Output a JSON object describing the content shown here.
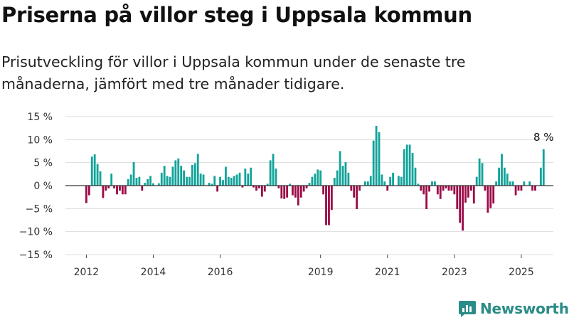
{
  "chart_data": {
    "type": "bar",
    "title": "Priserna på villor steg i Uppsala kommun",
    "subtitle": "Prisutveckling för villor i Uppsala kommun under de senaste tre månaderna, jämfört med tre månader tidigare.",
    "xlabel": "",
    "ylabel": "",
    "ylim": [
      -15,
      15
    ],
    "y_ticks": [
      15,
      10,
      5,
      0,
      -5,
      -10,
      -15
    ],
    "y_tick_labels": [
      "15 %",
      "10 %",
      "5 %",
      "0 %",
      "−5 %",
      "−10 %",
      "−15 %"
    ],
    "x_range": [
      "2011-06",
      "2026-01"
    ],
    "x_ticks": [
      {
        "date": "2012-01",
        "label": "2012"
      },
      {
        "date": "2014-01",
        "label": "2014"
      },
      {
        "date": "2016-01",
        "label": "2016"
      },
      {
        "date": "2019-01",
        "label": "2019"
      },
      {
        "date": "2021-01",
        "label": "2021"
      },
      {
        "date": "2023-01",
        "label": "2023"
      },
      {
        "date": "2025-01",
        "label": "2025"
      }
    ],
    "grid": true,
    "legend": "none",
    "series": [
      {
        "positive_color": "#12a39a",
        "negative_color": "#9c0b47",
        "points": [
          {
            "x": "2012-01",
            "y": -3.8
          },
          {
            "x": "2012-02",
            "y": -2.1
          },
          {
            "x": "2012-03",
            "y": 6.3
          },
          {
            "x": "2012-04",
            "y": 6.8
          },
          {
            "x": "2012-05",
            "y": 4.7
          },
          {
            "x": "2012-06",
            "y": 3.1
          },
          {
            "x": "2012-07",
            "y": -2.7
          },
          {
            "x": "2012-08",
            "y": -1.1
          },
          {
            "x": "2012-09",
            "y": -0.6
          },
          {
            "x": "2012-10",
            "y": 2.6
          },
          {
            "x": "2012-11",
            "y": -0.6
          },
          {
            "x": "2012-12",
            "y": -1.9
          },
          {
            "x": "2013-01",
            "y": -1.1
          },
          {
            "x": "2013-02",
            "y": -1.9
          },
          {
            "x": "2013-03",
            "y": -1.9
          },
          {
            "x": "2013-04",
            "y": 1.4
          },
          {
            "x": "2013-05",
            "y": 2.4
          },
          {
            "x": "2013-06",
            "y": 5.1
          },
          {
            "x": "2013-07",
            "y": 1.7
          },
          {
            "x": "2013-08",
            "y": 1.9
          },
          {
            "x": "2013-09",
            "y": -1.1
          },
          {
            "x": "2013-10",
            "y": 0.6
          },
          {
            "x": "2013-11",
            "y": 1.4
          },
          {
            "x": "2013-12",
            "y": 2.1
          },
          {
            "x": "2014-01",
            "y": 0.5
          },
          {
            "x": "2014-03",
            "y": 0.5
          },
          {
            "x": "2014-04",
            "y": 2.8
          },
          {
            "x": "2014-05",
            "y": 4.3
          },
          {
            "x": "2014-06",
            "y": 2.1
          },
          {
            "x": "2014-07",
            "y": 1.9
          },
          {
            "x": "2014-08",
            "y": 4.1
          },
          {
            "x": "2014-09",
            "y": 5.5
          },
          {
            "x": "2014-10",
            "y": 5.9
          },
          {
            "x": "2014-11",
            "y": 4.3
          },
          {
            "x": "2014-12",
            "y": 3.3
          },
          {
            "x": "2015-01",
            "y": 1.9
          },
          {
            "x": "2015-02",
            "y": 1.9
          },
          {
            "x": "2015-03",
            "y": 4.5
          },
          {
            "x": "2015-04",
            "y": 4.9
          },
          {
            "x": "2015-05",
            "y": 6.9
          },
          {
            "x": "2015-06",
            "y": 2.6
          },
          {
            "x": "2015-07",
            "y": 2.4
          },
          {
            "x": "2015-09",
            "y": 0.6
          },
          {
            "x": "2015-10",
            "y": 0.4
          },
          {
            "x": "2015-11",
            "y": 2.1
          },
          {
            "x": "2015-12",
            "y": -1.3
          },
          {
            "x": "2016-01",
            "y": 1.9
          },
          {
            "x": "2016-02",
            "y": 1.2
          },
          {
            "x": "2016-03",
            "y": 4.1
          },
          {
            "x": "2016-04",
            "y": 1.9
          },
          {
            "x": "2016-05",
            "y": 1.7
          },
          {
            "x": "2016-06",
            "y": 2.1
          },
          {
            "x": "2016-07",
            "y": 2.4
          },
          {
            "x": "2016-08",
            "y": 2.8
          },
          {
            "x": "2016-09",
            "y": -0.4
          },
          {
            "x": "2016-10",
            "y": 3.7
          },
          {
            "x": "2016-11",
            "y": 2.6
          },
          {
            "x": "2016-12",
            "y": 3.9
          },
          {
            "x": "2017-01",
            "y": -0.4
          },
          {
            "x": "2017-02",
            "y": -1.1
          },
          {
            "x": "2017-03",
            "y": -0.6
          },
          {
            "x": "2017-04",
            "y": -2.4
          },
          {
            "x": "2017-05",
            "y": -1.3
          },
          {
            "x": "2017-06",
            "y": 0.4
          },
          {
            "x": "2017-07",
            "y": 5.5
          },
          {
            "x": "2017-08",
            "y": 6.9
          },
          {
            "x": "2017-09",
            "y": 3.7
          },
          {
            "x": "2017-10",
            "y": -0.6
          },
          {
            "x": "2017-11",
            "y": -2.8
          },
          {
            "x": "2017-12",
            "y": -2.9
          },
          {
            "x": "2018-01",
            "y": -2.6
          },
          {
            "x": "2018-02",
            "y": 0.4
          },
          {
            "x": "2018-03",
            "y": -2.1
          },
          {
            "x": "2018-04",
            "y": -2.6
          },
          {
            "x": "2018-05",
            "y": -4.3
          },
          {
            "x": "2018-06",
            "y": -2.6
          },
          {
            "x": "2018-07",
            "y": -1.3
          },
          {
            "x": "2018-08",
            "y": -0.6
          },
          {
            "x": "2018-09",
            "y": 0.6
          },
          {
            "x": "2018-10",
            "y": 1.9
          },
          {
            "x": "2018-11",
            "y": 2.6
          },
          {
            "x": "2018-12",
            "y": 3.5
          },
          {
            "x": "2019-01",
            "y": 3.3
          },
          {
            "x": "2019-02",
            "y": -1.9
          },
          {
            "x": "2019-03",
            "y": -8.6
          },
          {
            "x": "2019-04",
            "y": -8.6
          },
          {
            "x": "2019-05",
            "y": -5.3
          },
          {
            "x": "2019-06",
            "y": 1.7
          },
          {
            "x": "2019-07",
            "y": 3.3
          },
          {
            "x": "2019-08",
            "y": 7.5
          },
          {
            "x": "2019-09",
            "y": 4.3
          },
          {
            "x": "2019-10",
            "y": 5.1
          },
          {
            "x": "2019-11",
            "y": 2.8
          },
          {
            "x": "2019-12",
            "y": -1.1
          },
          {
            "x": "2020-01",
            "y": -2.6
          },
          {
            "x": "2020-02",
            "y": -5.1
          },
          {
            "x": "2020-03",
            "y": -1.1
          },
          {
            "x": "2020-05",
            "y": 0.9
          },
          {
            "x": "2020-06",
            "y": 0.9
          },
          {
            "x": "2020-07",
            "y": 2.1
          },
          {
            "x": "2020-08",
            "y": 9.8
          },
          {
            "x": "2020-09",
            "y": 13.0
          },
          {
            "x": "2020-10",
            "y": 11.6
          },
          {
            "x": "2020-11",
            "y": 2.4
          },
          {
            "x": "2020-12",
            "y": 0.9
          },
          {
            "x": "2021-01",
            "y": -1.1
          },
          {
            "x": "2021-02",
            "y": 1.9
          },
          {
            "x": "2021-03",
            "y": 2.8
          },
          {
            "x": "2021-05",
            "y": 2.1
          },
          {
            "x": "2021-06",
            "y": 1.9
          },
          {
            "x": "2021-07",
            "y": 7.9
          },
          {
            "x": "2021-08",
            "y": 8.9
          },
          {
            "x": "2021-09",
            "y": 8.9
          },
          {
            "x": "2021-10",
            "y": 7.1
          },
          {
            "x": "2021-11",
            "y": 3.9
          },
          {
            "x": "2021-12",
            "y": 0.4
          },
          {
            "x": "2022-01",
            "y": -1.1
          },
          {
            "x": "2022-02",
            "y": -1.9
          },
          {
            "x": "2022-03",
            "y": -5.1
          },
          {
            "x": "2022-04",
            "y": -1.3
          },
          {
            "x": "2022-05",
            "y": 0.9
          },
          {
            "x": "2022-06",
            "y": 0.9
          },
          {
            "x": "2022-07",
            "y": -1.9
          },
          {
            "x": "2022-08",
            "y": -2.9
          },
          {
            "x": "2022-09",
            "y": -1.1
          },
          {
            "x": "2022-10",
            "y": -0.6
          },
          {
            "x": "2022-11",
            "y": -1.1
          },
          {
            "x": "2022-12",
            "y": -1.1
          },
          {
            "x": "2023-01",
            "y": -1.9
          },
          {
            "x": "2023-02",
            "y": -5.1
          },
          {
            "x": "2023-03",
            "y": -8.1
          },
          {
            "x": "2023-04",
            "y": -9.8
          },
          {
            "x": "2023-05",
            "y": -3.7
          },
          {
            "x": "2023-06",
            "y": -2.6
          },
          {
            "x": "2023-07",
            "y": -1.1
          },
          {
            "x": "2023-08",
            "y": -3.9
          },
          {
            "x": "2023-09",
            "y": 1.9
          },
          {
            "x": "2023-10",
            "y": 5.9
          },
          {
            "x": "2023-11",
            "y": 4.9
          },
          {
            "x": "2023-12",
            "y": -1.1
          },
          {
            "x": "2024-01",
            "y": -5.9
          },
          {
            "x": "2024-02",
            "y": -4.9
          },
          {
            "x": "2024-03",
            "y": -3.9
          },
          {
            "x": "2024-04",
            "y": 0.9
          },
          {
            "x": "2024-05",
            "y": 3.9
          },
          {
            "x": "2024-06",
            "y": 6.9
          },
          {
            "x": "2024-07",
            "y": 3.9
          },
          {
            "x": "2024-08",
            "y": 2.6
          },
          {
            "x": "2024-09",
            "y": 0.9
          },
          {
            "x": "2024-10",
            "y": 0.9
          },
          {
            "x": "2024-11",
            "y": -2.1
          },
          {
            "x": "2024-12",
            "y": -1.1
          },
          {
            "x": "2025-01",
            "y": -1.1
          },
          {
            "x": "2025-02",
            "y": 0.9
          },
          {
            "x": "2025-04",
            "y": 0.9
          },
          {
            "x": "2025-05",
            "y": -1.1
          },
          {
            "x": "2025-06",
            "y": -1.1
          },
          {
            "x": "2025-08",
            "y": 3.9
          },
          {
            "x": "2025-09",
            "y": 7.9
          }
        ]
      }
    ],
    "annotations": [
      {
        "x": "2025-09",
        "y": 7.9,
        "label": "8 %"
      }
    ]
  },
  "brand": {
    "name": "Newsworthy",
    "color": "#2a8c86",
    "icon": "bar-chart-logo-icon"
  }
}
